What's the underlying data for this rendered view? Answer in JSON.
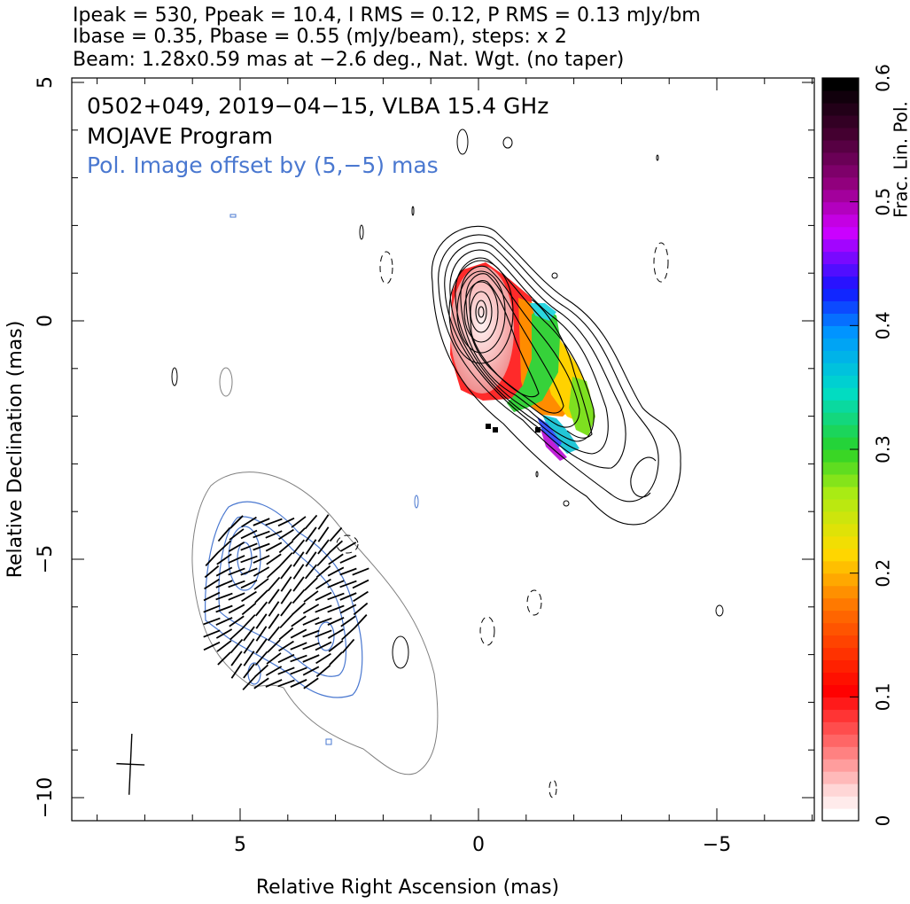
{
  "header": {
    "line1": "Ipeak = 530, Ppeak = 10.4, I RMS = 0.12, P RMS = 0.13 mJy/bm",
    "line2": "Ibase = 0.35, Pbase = 0.55 (mJy/beam), steps: x 2",
    "line3": "Beam: 1.28x0.59 mas at −2.6 deg., Nat. Wgt. (no taper)"
  },
  "annotations": {
    "source_line": "0502+049, 2019−04−15, VLBA 15.4 GHz",
    "program_line": "MOJAVE Program",
    "offset_line": "Pol. Image offset by (5,−5) mas"
  },
  "colors": {
    "total_intensity_contour": "#000000",
    "polarization_contour": "#4a78d0",
    "offset_image_contour": "#808080",
    "offset_note_text": "#4a78d0",
    "evpa_ticks": "#000000"
  },
  "chart_data": {
    "type": "heatmap",
    "title": "0502+049, 2019−04−15, VLBA 15.4 GHz",
    "xlabel": "Relative Right Ascension (mas)",
    "ylabel": "Relative Declination (mas)",
    "xlim": [
      8.5,
      -7.0
    ],
    "ylim": [
      -10.5,
      5.2
    ],
    "x_ticks": [
      {
        "value": 5,
        "label": "5"
      },
      {
        "value": 0,
        "label": "0"
      },
      {
        "value": -5,
        "label": "−5"
      }
    ],
    "y_ticks": [
      {
        "value": 5,
        "label": "5"
      },
      {
        "value": 0,
        "label": "0"
      },
      {
        "value": -5,
        "label": "−5"
      },
      {
        "value": -10,
        "label": "−10"
      }
    ],
    "x_minor_step": 1,
    "y_minor_step": 1,
    "grid": false,
    "colorbar": {
      "label": "Frac. Lin. Pol.",
      "range": [
        0,
        0.6
      ],
      "ticks": [
        {
          "value": 0,
          "label": "0"
        },
        {
          "value": 0.1,
          "label": "0.1"
        },
        {
          "value": 0.2,
          "label": "0.2"
        },
        {
          "value": 0.3,
          "label": "0.3"
        },
        {
          "value": 0.4,
          "label": "0.4"
        },
        {
          "value": 0.5,
          "label": "0.5"
        },
        {
          "value": 0.6,
          "label": "0.6"
        }
      ],
      "colormap": "white-red-orange-yellow-green-cyan-blue-magenta-black"
    },
    "source": {
      "peak_ra": 0.0,
      "peak_dec": 0.0,
      "jet_position_angle_deg": 225
    },
    "beam": {
      "major_mas": 1.28,
      "minor_mas": 0.59,
      "pa_deg": -2.6,
      "center": [
        7.3,
        -9.3
      ]
    }
  }
}
